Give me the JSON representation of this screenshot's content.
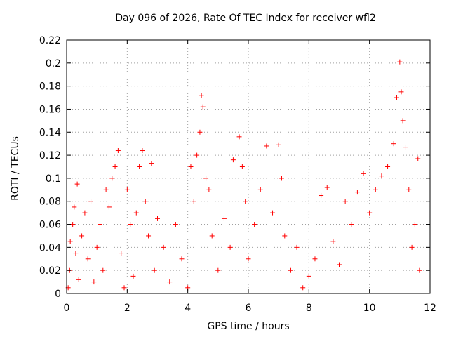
{
  "chart_data": {
    "type": "scatter",
    "title": "Day 096 of 2026, Rate Of TEC Index for receiver wfl2",
    "xlabel": "GPS time / hours",
    "ylabel": "ROTI / TECUs",
    "xlim": [
      0,
      12
    ],
    "ylim": [
      0,
      0.22
    ],
    "xticks": [
      "0",
      "2",
      "4",
      "6",
      "8",
      "10",
      "12"
    ],
    "yticks": [
      "0",
      "0.02",
      "0.04",
      "0.06",
      "0.08",
      "0.1",
      "0.12",
      "0.14",
      "0.16",
      "0.18",
      "0.2",
      "0.22"
    ],
    "grid": true,
    "marker": "+",
    "color": "#ff0000",
    "series": [
      {
        "values": [
          [
            0.05,
            0.005
          ],
          [
            0.1,
            0.02
          ],
          [
            0.12,
            0.045
          ],
          [
            0.2,
            0.06
          ],
          [
            0.25,
            0.075
          ],
          [
            0.3,
            0.035
          ],
          [
            0.35,
            0.095
          ],
          [
            0.4,
            0.012
          ],
          [
            0.5,
            0.05
          ],
          [
            0.6,
            0.07
          ],
          [
            0.7,
            0.03
          ],
          [
            0.8,
            0.08
          ],
          [
            0.9,
            0.01
          ],
          [
            1.0,
            0.04
          ],
          [
            1.1,
            0.06
          ],
          [
            1.2,
            0.02
          ],
          [
            1.3,
            0.09
          ],
          [
            1.4,
            0.075
          ],
          [
            1.5,
            0.1
          ],
          [
            1.6,
            0.11
          ],
          [
            1.7,
            0.124
          ],
          [
            1.8,
            0.035
          ],
          [
            1.9,
            0.005
          ],
          [
            2.0,
            0.09
          ],
          [
            2.1,
            0.06
          ],
          [
            2.2,
            0.015
          ],
          [
            2.3,
            0.07
          ],
          [
            2.4,
            0.11
          ],
          [
            2.5,
            0.124
          ],
          [
            2.6,
            0.08
          ],
          [
            2.7,
            0.05
          ],
          [
            2.8,
            0.113
          ],
          [
            2.9,
            0.02
          ],
          [
            3.0,
            0.065
          ],
          [
            3.2,
            0.04
          ],
          [
            3.4,
            0.01
          ],
          [
            3.6,
            0.06
          ],
          [
            3.8,
            0.03
          ],
          [
            4.0,
            0.005
          ],
          [
            4.1,
            0.11
          ],
          [
            4.2,
            0.08
          ],
          [
            4.3,
            0.12
          ],
          [
            4.4,
            0.14
          ],
          [
            4.45,
            0.172
          ],
          [
            4.5,
            0.162
          ],
          [
            4.6,
            0.1
          ],
          [
            4.7,
            0.09
          ],
          [
            4.8,
            0.05
          ],
          [
            5.0,
            0.02
          ],
          [
            5.2,
            0.065
          ],
          [
            5.4,
            0.04
          ],
          [
            5.5,
            0.116
          ],
          [
            5.7,
            0.136
          ],
          [
            5.8,
            0.11
          ],
          [
            5.9,
            0.08
          ],
          [
            6.0,
            0.03
          ],
          [
            6.2,
            0.06
          ],
          [
            6.4,
            0.09
          ],
          [
            6.6,
            0.128
          ],
          [
            6.8,
            0.07
          ],
          [
            7.0,
            0.129
          ],
          [
            7.1,
            0.1
          ],
          [
            7.2,
            0.05
          ],
          [
            7.4,
            0.02
          ],
          [
            7.6,
            0.04
          ],
          [
            7.8,
            0.005
          ],
          [
            8.0,
            0.015
          ],
          [
            8.2,
            0.03
          ],
          [
            8.4,
            0.085
          ],
          [
            8.6,
            0.092
          ],
          [
            8.8,
            0.045
          ],
          [
            9.0,
            0.025
          ],
          [
            9.2,
            0.08
          ],
          [
            9.4,
            0.06
          ],
          [
            9.6,
            0.088
          ],
          [
            9.8,
            0.104
          ],
          [
            10.0,
            0.07
          ],
          [
            10.2,
            0.09
          ],
          [
            10.4,
            0.102
          ],
          [
            10.6,
            0.11
          ],
          [
            10.8,
            0.13
          ],
          [
            10.9,
            0.17
          ],
          [
            11.0,
            0.201
          ],
          [
            11.05,
            0.175
          ],
          [
            11.1,
            0.15
          ],
          [
            11.2,
            0.127
          ],
          [
            11.3,
            0.09
          ],
          [
            11.4,
            0.04
          ],
          [
            11.5,
            0.06
          ],
          [
            11.6,
            0.117
          ],
          [
            11.65,
            0.02
          ]
        ]
      }
    ]
  }
}
